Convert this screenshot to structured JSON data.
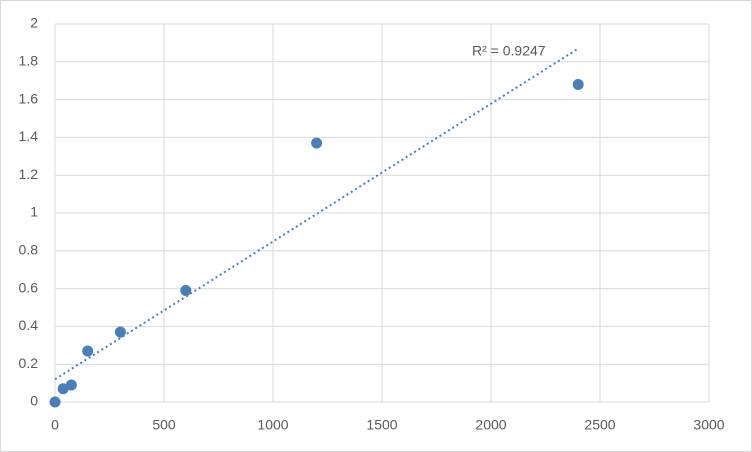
{
  "chart_data": {
    "type": "scatter",
    "x": [
      0,
      37.5,
      75,
      150,
      300,
      600,
      1200,
      2400
    ],
    "series": [
      {
        "color": "#4a7ebb",
        "values": [
          0,
          0.07,
          0.09,
          0.27,
          0.37,
          0.59,
          1.37,
          1.68
        ]
      }
    ],
    "trendline": {
      "x": [
        0,
        2400
      ],
      "y": [
        0.12,
        1.87
      ],
      "color": "#4a7ebb",
      "label": "R² = 0.9247"
    },
    "xlim": [
      0,
      3000
    ],
    "xticks": [
      0,
      500,
      1000,
      1500,
      2000,
      2500,
      3000
    ],
    "ylim": [
      0,
      2
    ],
    "yticks": [
      0,
      0.2,
      0.4,
      0.6,
      0.8,
      1,
      1.2,
      1.4,
      1.6,
      1.8,
      2
    ],
    "grid": true
  }
}
